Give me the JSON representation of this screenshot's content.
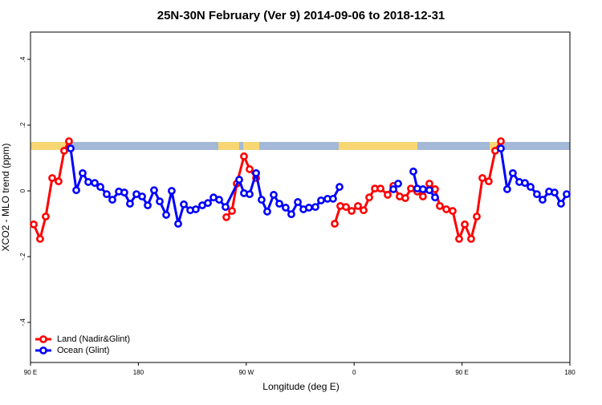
{
  "chart_data": {
    "type": "line",
    "title": "25N-30N February (Ver 9)   2014-09-06 to 2018-12-31",
    "x_label": "Longitude (deg E)",
    "y_label": "XCO2 - MLO trend (ppm)",
    "xlim": [
      90,
      540
    ],
    "ylim": [
      -0.522,
      0.483
    ],
    "xticks": [
      {
        "value": 90,
        "label": "90 E"
      },
      180,
      {
        "value": 270,
        "label": "90 W"
      },
      {
        "value": 360,
        "label": "0"
      },
      {
        "value": 450,
        "label": "90 E"
      },
      {
        "value": 540,
        "label": "180"
      }
    ],
    "yticks": [
      {
        "value": -0.4,
        "label": "-.4"
      },
      {
        "value": -0.2,
        "label": "-.2"
      },
      0,
      {
        "value": 0.2,
        "label": ".2"
      },
      {
        "value": 0.4,
        "label": ".4"
      }
    ],
    "legend": "bottom-left",
    "series": [
      {
        "name": "Land (Nadir&Glint)",
        "color": "#ff0000",
        "x": [
          92.7,
          98.0,
          102.7,
          108.1,
          113.4,
          118.1,
          122.1,
          200,
          253.4,
          258.1,
          262.1,
          268.1,
          272.8,
          278.2,
          350,
          343.8,
          348.5,
          353.2,
          357.9,
          363.2,
          367.9,
          372.6,
          377.3,
          382.0,
          388.0,
          392.7,
          398.0,
          402.7,
          407.4,
          412.7,
          417.4,
          422.8,
          427.5,
          431.5,
          436.9,
          442.2,
          447.6,
          452.3,
          457.6,
          462.3,
          467.0,
          472.3,
          477.7,
          482.4
        ],
        "values": [
          -0.102,
          -0.146,
          -0.078,
          0.039,
          0.029,
          0.122,
          0.151,
          null,
          -0.08,
          -0.061,
          0.022,
          0.105,
          0.066,
          0.039,
          null,
          -0.1,
          -0.046,
          -0.049,
          -0.061,
          -0.046,
          -0.059,
          -0.02,
          0.007,
          0.007,
          -0.012,
          0.015,
          -0.017,
          -0.022,
          0.007,
          -0.002,
          -0.017,
          0.022,
          0.005,
          -0.046,
          -0.056,
          -0.061,
          -0.146,
          -0.102,
          -0.146,
          -0.078,
          0.039,
          0.029,
          0.122,
          0.151
        ]
      },
      {
        "name": "Ocean (Glint)",
        "color": "#0000ff",
        "x": [
          123.5,
          128.2,
          133.5,
          138.2,
          143.6,
          148.3,
          153.6,
          158.3,
          163.7,
          168.3,
          173.0,
          178.4,
          183.1,
          187.8,
          193.1,
          197.8,
          203.2,
          207.8,
          213.2,
          217.9,
          223.3,
          227.9,
          233.3,
          238.0,
          242.7,
          247.4,
          252.7,
          264.1,
          268.1,
          272.8,
          278.2,
          282.8,
          287.5,
          292.9,
          297.6,
          302.9,
          307.6,
          313.0,
          317.7,
          322.3,
          327.7,
          332.4,
          337.8,
          342.4,
          347.8,
          370,
          392.7,
          396.7,
          403,
          409.4,
          412.7,
          417.4,
          422.8,
          427.5,
          450,
          482.4,
          487.7,
          492.4,
          497.8,
          502.5,
          507.2,
          512.5,
          517.2,
          522.6,
          527.2,
          532.6,
          537.3
        ],
        "values": [
          0.129,
          0.002,
          0.054,
          0.027,
          0.024,
          0.012,
          -0.01,
          -0.027,
          -0.002,
          -0.005,
          -0.039,
          -0.01,
          -0.017,
          -0.044,
          0.002,
          -0.032,
          -0.073,
          0.0,
          -0.1,
          -0.041,
          -0.059,
          -0.056,
          -0.044,
          -0.037,
          -0.02,
          -0.027,
          -0.049,
          0.034,
          -0.007,
          -0.01,
          0.054,
          -0.027,
          -0.063,
          -0.012,
          -0.039,
          -0.051,
          -0.071,
          -0.034,
          -0.056,
          -0.051,
          -0.049,
          -0.029,
          -0.024,
          -0.024,
          0.012,
          null,
          0.005,
          0.022,
          null,
          0.059,
          0.007,
          0.005,
          0.002,
          -0.02,
          null,
          0.129,
          0.005,
          0.054,
          0.027,
          0.024,
          0.012,
          -0.01,
          -0.027,
          -0.002,
          -0.005,
          -0.039,
          -0.01
        ]
      }
    ]
  }
}
